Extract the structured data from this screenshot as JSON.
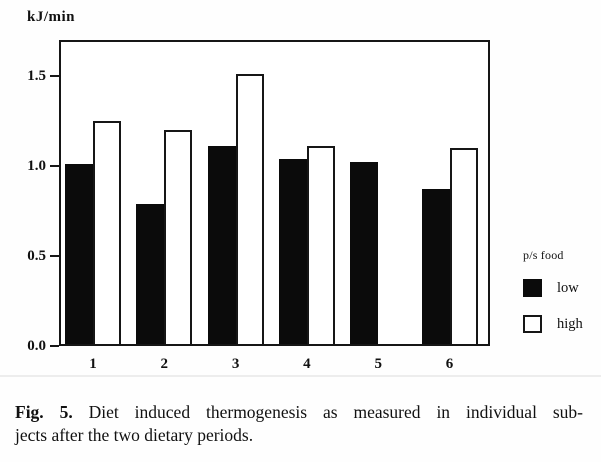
{
  "figure": {
    "y_axis_label": "kJ/min",
    "caption": {
      "label": "Fig. 5.",
      "line1_rest": " Diet induced thermogenesis as measured in individual sub-",
      "line2": "jects after the two dietary periods."
    }
  },
  "legend": {
    "title": "p/s food",
    "items": [
      {
        "label": "low",
        "fill": "#0b0b0b"
      },
      {
        "label": "high",
        "fill": "#ffffff"
      }
    ]
  },
  "colors": {
    "bar_low": "#0b0b0b",
    "bar_high": "#ffffff",
    "axis": "#161616",
    "background": "#fefefe"
  },
  "chart_data": {
    "type": "bar",
    "title": "",
    "xlabel": "",
    "ylabel": "kJ/min",
    "categories": [
      "1",
      "2",
      "3",
      "4",
      "5",
      "6"
    ],
    "series": [
      {
        "name": "low",
        "fill": "#0b0b0b",
        "values": [
          1.0,
          0.78,
          1.1,
          1.03,
          1.01,
          0.86
        ]
      },
      {
        "name": "high",
        "fill": "#ffffff",
        "values": [
          1.24,
          1.19,
          1.5,
          1.1,
          null,
          1.09
        ]
      }
    ],
    "ylim": [
      0,
      1.7
    ],
    "yticks": [
      0.0,
      0.5,
      1.0,
      1.5
    ],
    "grid": false,
    "legend_position": "right"
  }
}
